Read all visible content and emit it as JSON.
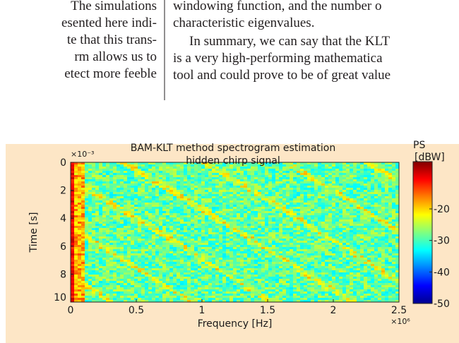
{
  "text": {
    "left_column": [
      "The simulations",
      "esented here indi-",
      "te that this trans-",
      "rm allows us to",
      "etect more feeble"
    ],
    "right_column": [
      "windowing function, and the number o",
      "characteristic eigenvalues.",
      "In summary, we can say that the KLT",
      "is a very high-performing mathematica",
      "tool and could prove to be of great value"
    ]
  },
  "chart_data": {
    "type": "spectrogram",
    "title": [
      "BAM-KLT method spectrogram estimation",
      "hidden chirp signal"
    ],
    "x_label": "Frequency [Hz]",
    "y_label": "Time [s]",
    "xlim": [
      0,
      2.5
    ],
    "xticks": [
      0,
      0.5,
      1,
      1.5,
      2,
      2.5
    ],
    "x_multiplier": "×10⁶",
    "ylim": [
      0,
      10
    ],
    "yticks": [
      0,
      2,
      4,
      6,
      8,
      10
    ],
    "y_multiplier": "×10⁻³",
    "y_reversed": true,
    "colorbar": {
      "label": [
        "PS",
        "[dBW]"
      ],
      "lim": [
        -50,
        -5
      ],
      "ticks": [
        -20,
        -30,
        -40,
        -50
      ],
      "colormap": "jet"
    }
  }
}
